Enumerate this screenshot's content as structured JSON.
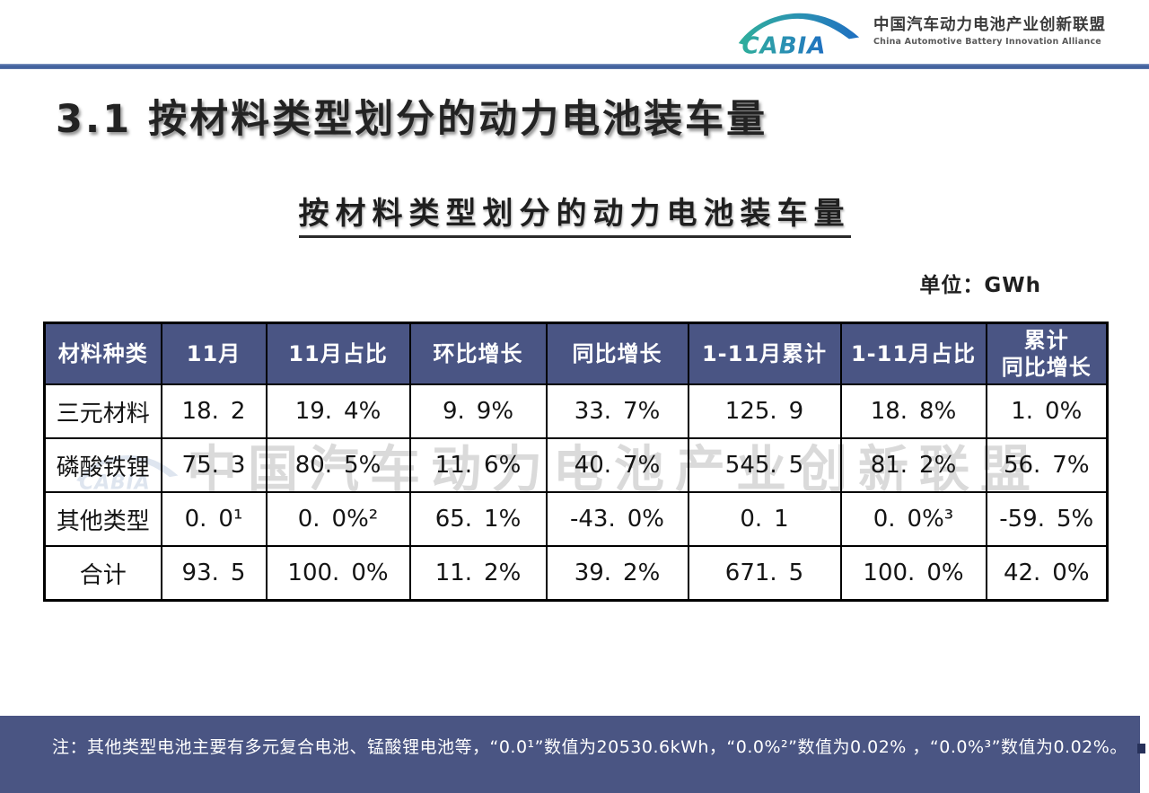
{
  "brand": {
    "logo_text": "CABIA",
    "org_name_cn": "中国汽车动力电池产业创新联盟",
    "org_name_en": "China Automotive Battery Innovation Alliance"
  },
  "page": {
    "section_title": "3.1 按材料类型划分的动力电池装车量",
    "table_title": "按材料类型划分的动力电池装车量",
    "unit_label": "单位：GWh"
  },
  "table": {
    "columns": [
      "材料种类",
      "11月",
      "11月占比",
      "环比增长",
      "同比增长",
      "1-11月累计",
      "1-11月占比",
      "累计\n同比增长"
    ],
    "rows": [
      [
        "三元材料",
        "18.2",
        "19.4%",
        "9.9%",
        "33.7%",
        "125.9",
        "18.8%",
        "1.0%"
      ],
      [
        "磷酸铁锂",
        "75.3",
        "80.5%",
        "11.6%",
        "40.7%",
        "545.5",
        "81.2%",
        "56.7%"
      ],
      [
        "其他类型",
        "0.0¹",
        "0.0%²",
        "65.1%",
        "-43.0%",
        "0.1",
        "0.0%³",
        "-59.5%"
      ],
      [
        "合计",
        "93.5",
        "100.0%",
        "11.2%",
        "39.2%",
        "671.5",
        "100.0%",
        "42.0%"
      ]
    ]
  },
  "watermark": {
    "logo_text": "CABIA",
    "text": "中国汽车动力电池产业创新联盟"
  },
  "footnote": "注：其他类型电池主要有多元复合电池、锰酸锂电池等，“0.0¹”数值为20530.6kWh，“0.0%²”数值为0.02% ，“0.0%³”数值为0.02%。",
  "colors": {
    "table_header_bg": "#4a5584",
    "footer_bar_bg": "#4a5583",
    "header_rule_blue": "#44639f",
    "logo_teal": "#2fae9b",
    "logo_blue": "#1e6ec1"
  }
}
